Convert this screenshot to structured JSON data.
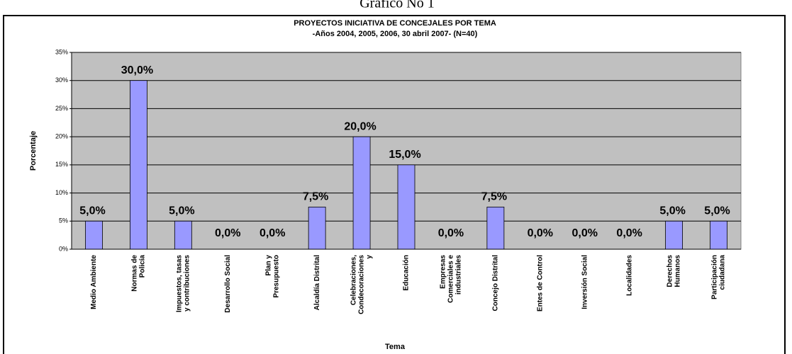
{
  "chart_data": {
    "type": "bar",
    "caption": "Gráfico No 1",
    "title": "PROYECTOS INICIATIVA DE CONCEJALES POR TEMA",
    "subtitle": "-Años 2004, 2005, 2006, 30 abril 2007- (N=40)",
    "y_label": "Porcentaje",
    "x_label": "Tema",
    "categories": [
      [
        "Medio Ambiente"
      ],
      [
        "Normas de",
        "Policía"
      ],
      [
        "Impuestos, tasas",
        "y contribuciones"
      ],
      [
        "Desarrollo Social"
      ],
      [
        "Plan y",
        "Presupuesto"
      ],
      [
        "Alcaldía Distrital"
      ],
      [
        "Celebraciones,",
        "Condecoraciones",
        "y"
      ],
      [
        "Educación"
      ],
      [
        "Empresas",
        "Comerciales e",
        "industriales"
      ],
      [
        "Concejo Distrital"
      ],
      [
        "Entes de Control"
      ],
      [
        "Inversión Social"
      ],
      [
        "Localidades"
      ],
      [
        "Derechos",
        "Humanos"
      ],
      [
        "Participación",
        "ciudadana"
      ]
    ],
    "values": [
      5,
      30,
      5,
      0,
      0,
      7.5,
      20,
      15,
      0,
      7.5,
      0,
      0,
      0,
      5,
      5
    ],
    "value_labels": [
      "5,0%",
      "30,0%",
      "5,0%",
      "0,0%",
      "0,0%",
      "7,5%",
      "20,0%",
      "15,0%",
      "0,0%",
      "7,5%",
      "0,0%",
      "0,0%",
      "0,0%",
      "5,0%",
      "5,0%"
    ],
    "color": "#9999ff",
    "ylim": [
      0,
      35
    ],
    "yticks": [
      {
        "value": 0,
        "label": "0%"
      },
      {
        "value": 5,
        "label": "5%"
      },
      {
        "value": 10,
        "label": "10%"
      },
      {
        "value": 15,
        "label": "15%"
      },
      {
        "value": 20,
        "label": "20%"
      },
      {
        "value": 25,
        "label": "25%"
      },
      {
        "value": 30,
        "label": "30%"
      },
      {
        "value": 35,
        "label": "35%"
      }
    ],
    "grid": true
  }
}
